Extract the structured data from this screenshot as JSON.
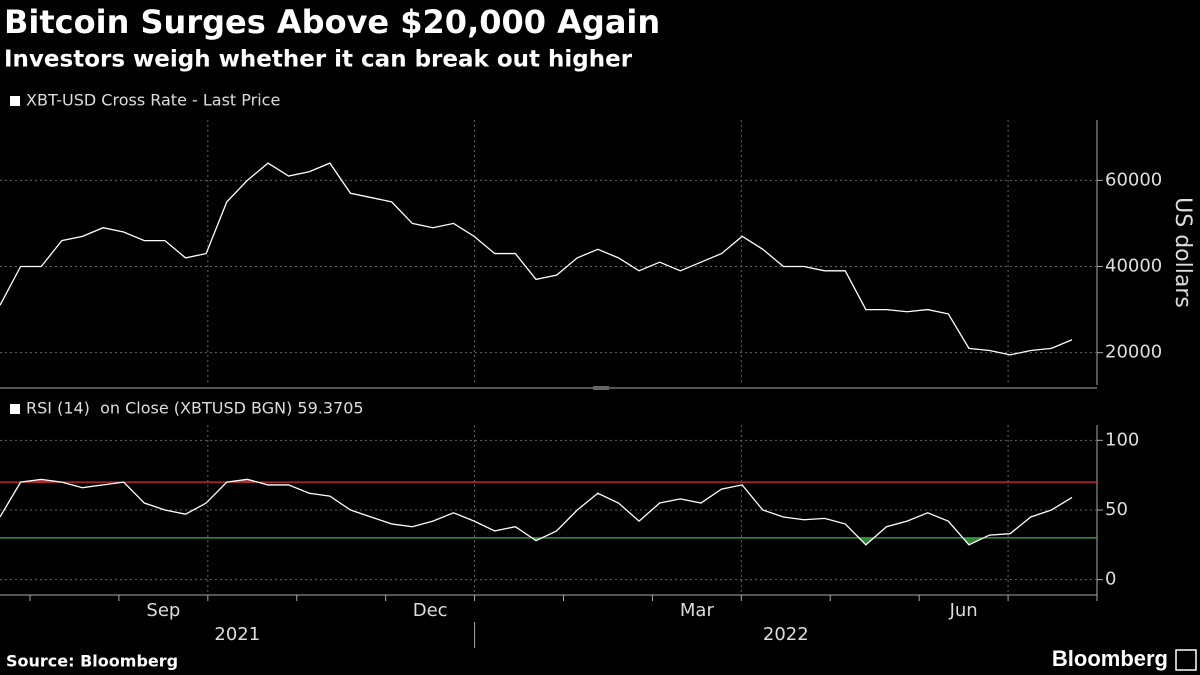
{
  "chart_data": [
    {
      "type": "line",
      "title": "Bitcoin Surges Above $20,000 Again",
      "subtitle": "Investors weigh whether it can break out higher",
      "series": [
        {
          "name": "XBT-USD Cross Rate - Last Price",
          "color": "#ffffff",
          "values": [
            31000,
            40000,
            40000,
            46000,
            47000,
            49000,
            48000,
            46000,
            46000,
            42000,
            43000,
            55000,
            60000,
            64000,
            61000,
            62000,
            64000,
            57000,
            56000,
            55000,
            50000,
            49000,
            50000,
            47000,
            43000,
            43000,
            37000,
            38000,
            42000,
            44000,
            42000,
            39000,
            41000,
            39000,
            41000,
            43000,
            47000,
            44000,
            40000,
            40000,
            39000,
            39000,
            30000,
            30000,
            29500,
            30000,
            29000,
            21000,
            20500,
            19500,
            20500,
            21000,
            23000
          ]
        }
      ],
      "y_label": "US dollars",
      "ylim": [
        12500,
        74000
      ],
      "yticks": [
        20000,
        40000,
        60000
      ],
      "grid": true
    },
    {
      "type": "line",
      "series": [
        {
          "name": "RSI (14)  on Close (XBTUSD BGN) 59.3705",
          "color": "#ffffff",
          "values": [
            45,
            70,
            72,
            70,
            66,
            68,
            70,
            55,
            50,
            47,
            55,
            70,
            72,
            68,
            68,
            62,
            60,
            50,
            45,
            40,
            38,
            42,
            48,
            42,
            35,
            38,
            28,
            35,
            50,
            62,
            55,
            42,
            55,
            58,
            55,
            65,
            68,
            50,
            45,
            43,
            44,
            40,
            25,
            38,
            42,
            48,
            42,
            25,
            32,
            33,
            45,
            50,
            59
          ]
        }
      ],
      "ylim": [
        -11,
        111
      ],
      "yticks": [
        0,
        50,
        100
      ],
      "reference_lines": [
        {
          "value": 70,
          "color": "#d9343a"
        },
        {
          "value": 30,
          "color": "#3fae49"
        }
      ],
      "grid": true
    }
  ],
  "x_axis": {
    "months": [
      null,
      "Sep",
      null,
      null,
      "Dec",
      null,
      null,
      "Mar",
      null,
      null,
      "Jun",
      null
    ],
    "years": [
      "2021",
      "2022"
    ]
  },
  "source": "Source: Bloomberg",
  "logo": "Bloomberg"
}
